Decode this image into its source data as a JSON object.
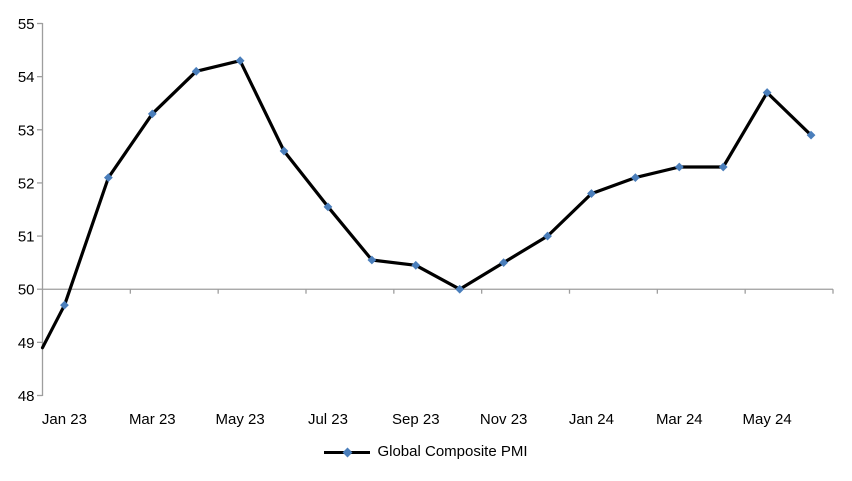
{
  "chart_data": {
    "type": "line",
    "title": "",
    "xlabel": "",
    "ylabel": "",
    "categories": [
      "Jan 23",
      "Feb 23",
      "Mar 23",
      "Apr 23",
      "May 23",
      "Jun 23",
      "Jul 23",
      "Aug 23",
      "Sep 23",
      "Oct 23",
      "Nov 23",
      "Dec 23",
      "Jan 24",
      "Feb 24",
      "Mar 24",
      "Apr 24",
      "May 24",
      "Jun 24"
    ],
    "series": [
      {
        "name": "Global Composite PMI",
        "values": [
          49.7,
          52.1,
          53.3,
          54.1,
          54.3,
          52.6,
          51.55,
          50.55,
          50.45,
          50.0,
          50.5,
          51.0,
          51.8,
          52.1,
          52.3,
          52.3,
          53.7,
          52.9
        ]
      }
    ],
    "edge_start_value": 48.9,
    "x_tick_labels": [
      "Jan 23",
      "Mar 23",
      "May 23",
      "Jul 23",
      "Sep 23",
      "Nov 23",
      "Jan 24",
      "Mar 24",
      "May 24"
    ],
    "x_label_every": 2,
    "y_ticks": [
      48,
      49,
      50,
      51,
      52,
      53,
      54,
      55
    ],
    "ylim": [
      48,
      55
    ],
    "baseline_value": 50,
    "grid": false,
    "legend": {
      "label": "Global Composite PMI",
      "position": "bottom"
    },
    "colors": {
      "line": "#000000",
      "marker": "#4A7EBB",
      "axis": "#9E9E9E",
      "text": "#000000"
    }
  }
}
